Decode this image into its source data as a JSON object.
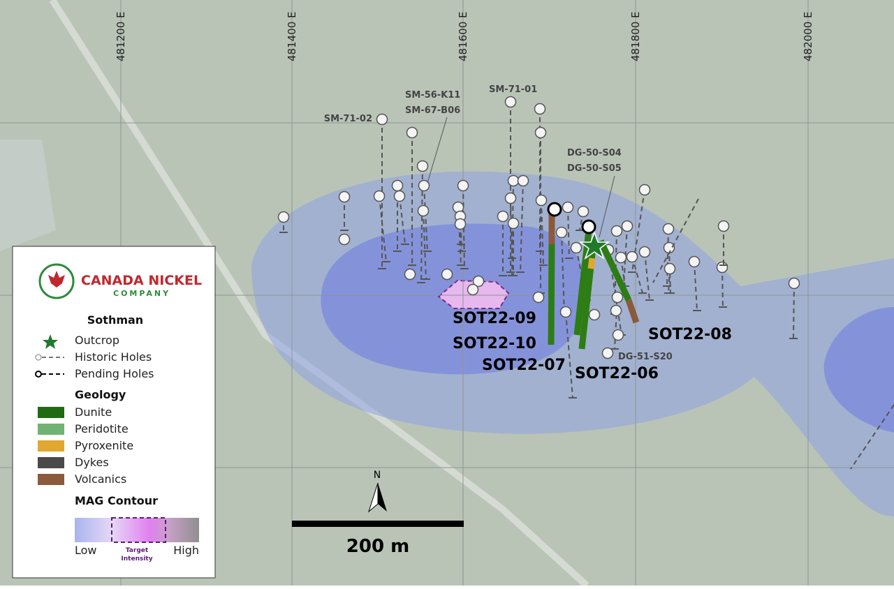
{
  "grid_labels": [
    "481200 E",
    "481400 E",
    "481600 E",
    "481800 E",
    "482000 E"
  ],
  "hole_labels": [
    "SM-71-02",
    "SM-56-K11",
    "SM-67-B06",
    "SM-71-01",
    "DG-50-S04",
    "DG-50-S05",
    "DG-51-S20"
  ],
  "target_labels": [
    "SOT22-09",
    "SOT22-10",
    "SOT22-07",
    "SOT22-06",
    "SOT22-08"
  ],
  "legend": {
    "company": "CANADA NICKEL",
    "company_sub": "COMPANY",
    "title": "Sothman",
    "symbols": [
      "Outcrop",
      "Historic Holes",
      "Pending Holes"
    ],
    "geology_title": "Geology",
    "geology": [
      "Dunite",
      "Peridotite",
      "Pyroxenite",
      "Dykes",
      "Volcanics"
    ],
    "mag_title": "MAG Contour",
    "mag_low": "Low",
    "mag_target": [
      "Target",
      "Intensity"
    ],
    "mag_high": "High"
  },
  "scale": "200 m",
  "north": "N"
}
